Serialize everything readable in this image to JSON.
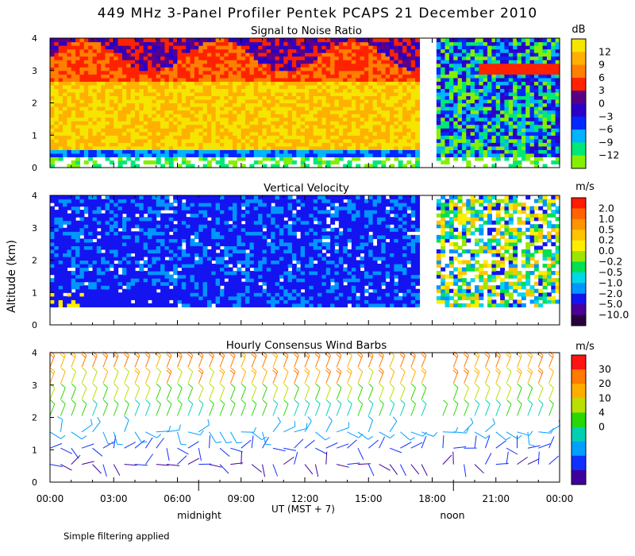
{
  "title": "449 MHz 3-Panel Profiler Pentek PCAPS 21 December 2010",
  "ylabel": "Altitude (km)",
  "xlabel": "UT  (MST + 7)",
  "footnote": "Simple filtering applied",
  "x_ticks": [
    "00:00",
    "03:00",
    "06:00",
    "09:00",
    "12:00",
    "15:00",
    "18:00",
    "21:00",
    "00:00"
  ],
  "x_markers": [
    {
      "label": "midnight",
      "hour": 7
    },
    {
      "label": "noon",
      "hour": 19
    }
  ],
  "chart_data": [
    {
      "type": "heatmap",
      "title": "Signal to Noise Ratio",
      "units": "dB",
      "xlim": [
        0,
        24
      ],
      "ylim": [
        0,
        4
      ],
      "y_ticks": [
        "0",
        "1",
        "2",
        "3",
        "4"
      ],
      "colorbar": {
        "labels": [
          "12",
          "9",
          "6",
          "3",
          "0",
          "−3",
          "−6",
          "−9",
          "−12"
        ],
        "colors": [
          "#f5e500",
          "#ffb000",
          "#ff7f00",
          "#ff2200",
          "#5a0087",
          "#2a00c8",
          "#0028ff",
          "#00b4ff",
          "#00e878",
          "#84f000"
        ]
      },
      "missing_gap_hours": [
        17.5,
        18.1
      ]
    },
    {
      "type": "heatmap",
      "title": "Vertical Velocity",
      "units": "m/s",
      "xlim": [
        0,
        24
      ],
      "ylim": [
        0,
        4
      ],
      "y_ticks": [
        "0",
        "1",
        "2",
        "3",
        "4"
      ],
      "colorbar": {
        "labels": [
          "2.0",
          "1.0",
          "0.5",
          "0.2",
          "0.0",
          "−0.2",
          "−0.5",
          "−1.0",
          "−2.0",
          "−5.0",
          "−10.0"
        ],
        "colors": [
          "#ff1a00",
          "#ff6400",
          "#ff9400",
          "#ffc400",
          "#ffee00",
          "#9ae600",
          "#00e050",
          "#00d8e8",
          "#0096ff",
          "#1414f0",
          "#4a0096",
          "#2a0040"
        ]
      },
      "missing_gap_hours": [
        17.5,
        18.1
      ]
    },
    {
      "type": "wind_barbs",
      "title": "Hourly Consensus Wind Barbs",
      "units": "m/s",
      "xlim": [
        0,
        24
      ],
      "ylim": [
        0,
        4
      ],
      "y_ticks": [
        "0",
        "1",
        "2",
        "3",
        "4"
      ],
      "colorbar": {
        "labels": [
          "30",
          "20",
          "10",
          "4",
          "0"
        ],
        "colors": [
          "#ff1414",
          "#ff7a00",
          "#ffae00",
          "#b8e000",
          "#28d800",
          "#00d0b0",
          "#00a0ff",
          "#1030ff",
          "#40009c"
        ]
      },
      "speed_profile_by_altitude_km": {
        "altitudes": [
          0.5,
          1.0,
          1.5,
          2.0,
          2.5,
          3.0,
          3.5
        ],
        "speed_ms": [
          2,
          3,
          5,
          10,
          15,
          20,
          23
        ]
      },
      "barb_hours": [
        0,
        0.5,
        1,
        1.5,
        2,
        2.5,
        3,
        3.5,
        4,
        4.5,
        5,
        5.5,
        6,
        6.5,
        7,
        7.5,
        8,
        8.5,
        9,
        9.5,
        10,
        10.5,
        11,
        11.5,
        12,
        12.5,
        13,
        13.5,
        14,
        14.5,
        15,
        15.5,
        16,
        16.5,
        17,
        17.5,
        18.5,
        19,
        19.5,
        20,
        20.5,
        21,
        21.5,
        22,
        22.5,
        23,
        23.5
      ]
    }
  ]
}
